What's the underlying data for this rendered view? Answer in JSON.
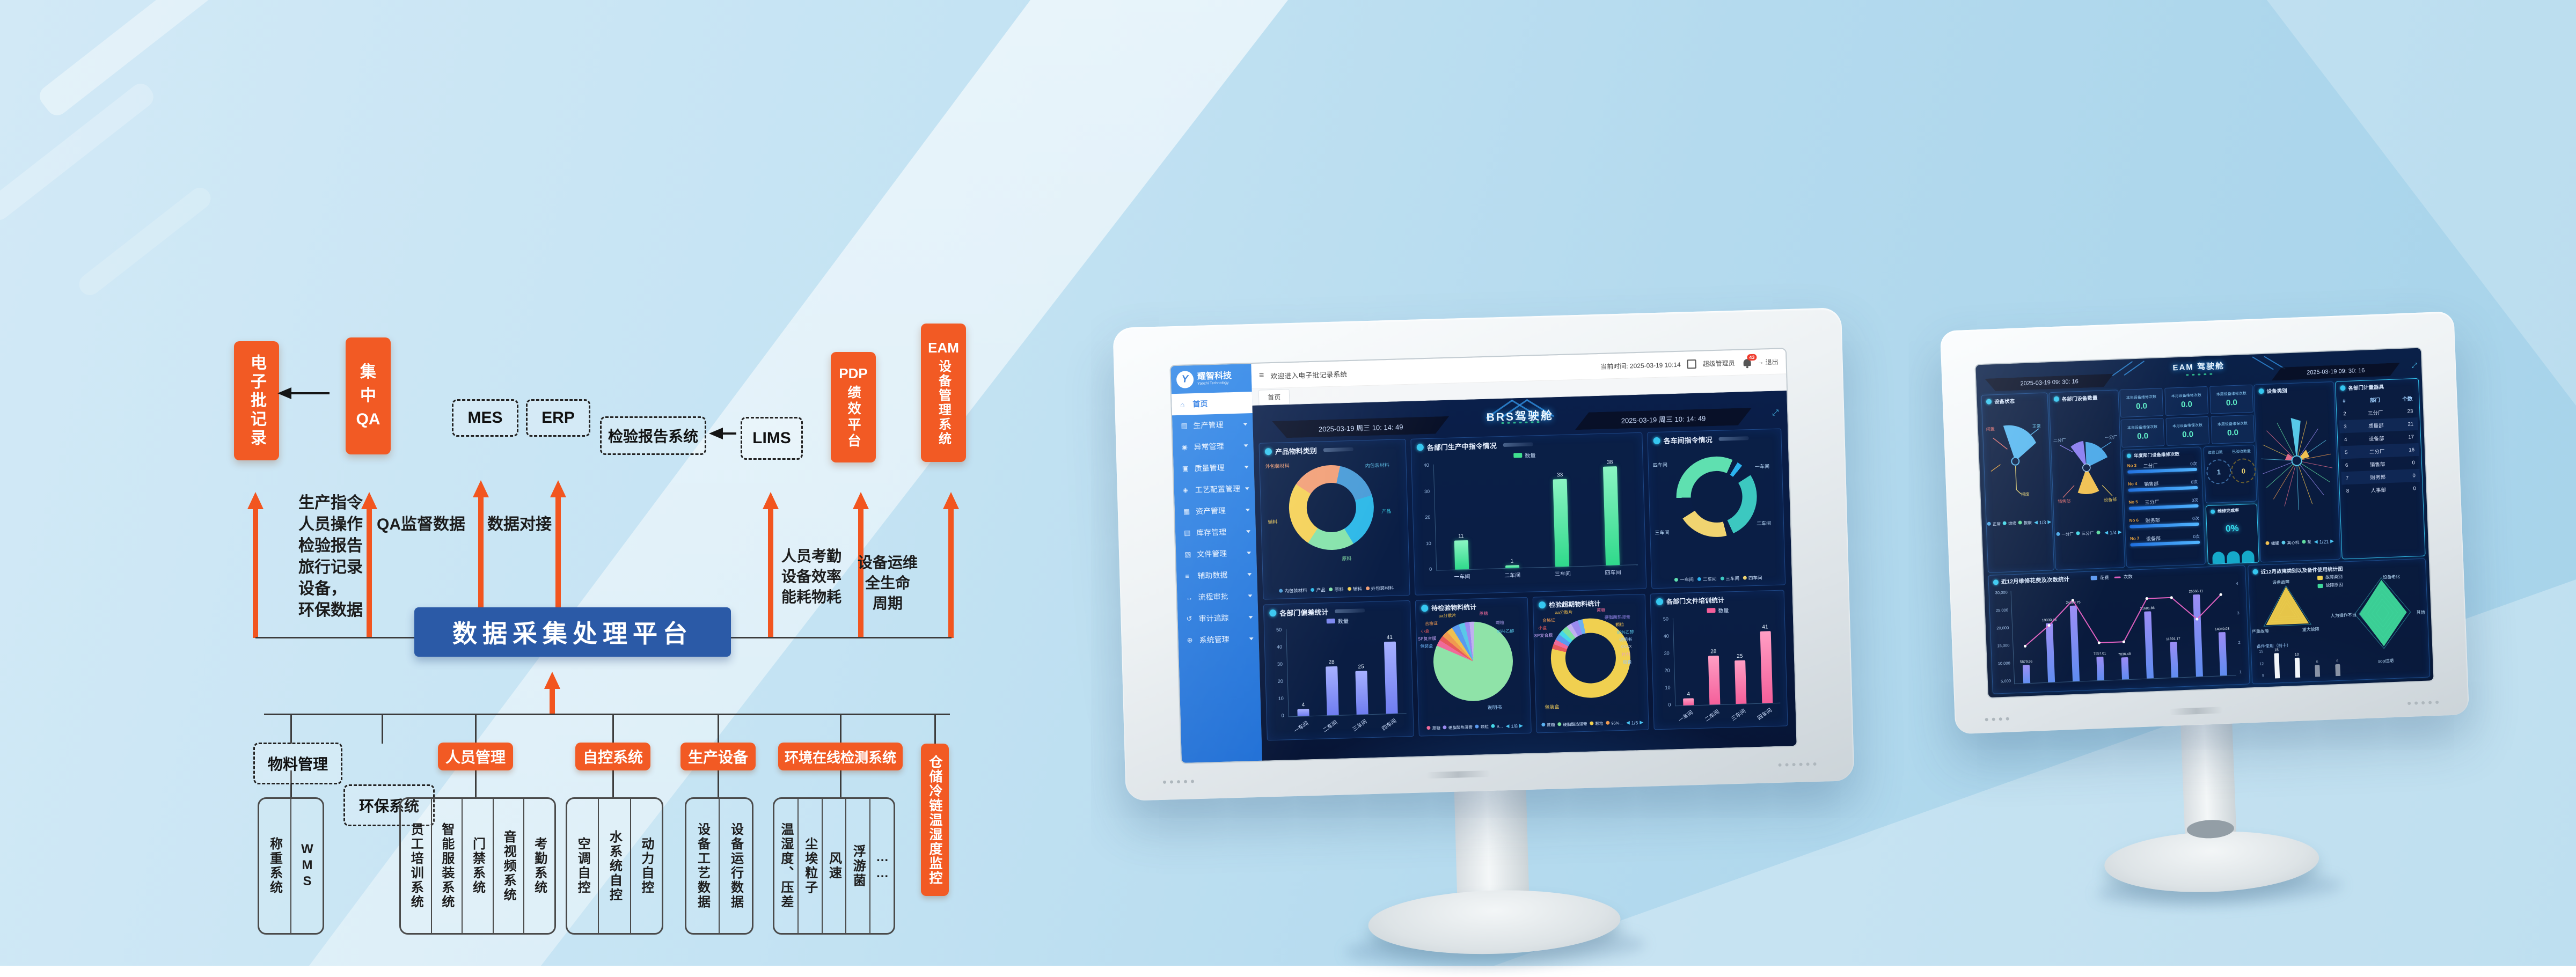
{
  "diagram": {
    "ebr": "电子批记录",
    "qa_line1": "集",
    "qa_line2": "中",
    "qa_line3": "QA",
    "mes": "MES",
    "erp": "ERP",
    "inspection": "检验报告系统",
    "lims": "LIMS",
    "pdp_title": "PDP",
    "pdp_sub": "绩效平台",
    "eam_title": "EAM",
    "eam_sub": "设备管理系统",
    "left_lines": [
      "生产指令",
      "人员操作",
      "检验报告",
      "旅行记录",
      "设备，",
      "环保数据"
    ],
    "qa_label": "QA监督数据",
    "link_label": "数据对接",
    "hr_lines": [
      "人员考勤",
      "设备效率",
      "能耗物耗"
    ],
    "ops_lines": [
      "设备运维",
      "全生命",
      "周期"
    ],
    "platform": "数据采集处理平台",
    "groups": [
      {
        "label": "物料管理",
        "children": [
          "称重系统",
          "WMS"
        ]
      },
      {
        "label": "环保系统",
        "children": []
      },
      {
        "label": "人员管理",
        "children": [
          "员工培训系统",
          "智能服装系统",
          "门禁系统",
          "音视频系统",
          "考勤系统"
        ]
      },
      {
        "label": "自控系统",
        "children": [
          "空调自控",
          "水系统自控",
          "动力自控"
        ]
      },
      {
        "label": "生产设备",
        "children": [
          "设备工艺数据",
          "设备运行数据"
        ]
      },
      {
        "label": "环境在线检测系统",
        "children": [
          "温湿度、压差",
          "尘埃粒子",
          "风速",
          "浮游菌",
          "……"
        ]
      },
      {
        "label": "仓储冷链温湿度监控",
        "children": []
      }
    ]
  },
  "m1": {
    "logo": "耀智科技",
    "logo_sub": "Yaozhi Technology",
    "welcome": "欢迎进入电子批记录系统",
    "time": "当前时间: 2025-03-19 10:14",
    "admin": "超级管理员",
    "badge": "43",
    "logout": "退出",
    "tab": "首页",
    "sidebar": [
      "首页",
      "生产管理",
      "异常管理",
      "质量管理",
      "工艺配置管理",
      "资产管理",
      "库存管理",
      "文件管理",
      "辅助数据",
      "流程审批",
      "审计追踪",
      "系统管理"
    ],
    "icons": [
      "⌂",
      "▤",
      "◉",
      "▣",
      "◈",
      "▦",
      "▥",
      "▧",
      "≡",
      "↔",
      "↺",
      "⊕"
    ],
    "title": "BRS驾驶舱",
    "datetime": "2025-03-19 周三 10: 14: 49",
    "cats": [
      "一车间",
      "二车间",
      "三车间",
      "四车间"
    ],
    "p_material": {
      "title": "产品物料类别",
      "labels": [
        "外包装材料",
        "内包装材料",
        "产品",
        "原料",
        "辅料"
      ],
      "legend": [
        "内包装材料",
        "产品",
        "原料",
        "辅料",
        "外包装材料"
      ],
      "colors": {
        "内包装材料": "#4a9cd8",
        "产品": "#2db8e8",
        "原料": "#86e3ab",
        "辅料": "#f5d259",
        "外包装材料": "#f2a078"
      }
    },
    "p_cmd": {
      "title": "各部门生产中指令情况",
      "legend": "数量",
      "values": [
        11,
        1,
        33,
        38
      ],
      "yticks": [
        "40",
        "30",
        "20",
        "10",
        "0"
      ]
    },
    "p_ws": {
      "title": "各车间指令情况",
      "labels": [
        "一车间",
        "二车间",
        "三车间",
        "四车间"
      ],
      "legend": [
        "一车间",
        "二车间",
        "三车间",
        "四车间"
      ],
      "colors": {
        "一车间": "#5fe0b0",
        "二车间": "#2bb3f0",
        "三车间": "#3cc8c0",
        "四车间": "#f0d470"
      }
    },
    "p_bias": {
      "title": "各部门偏差统计",
      "legend": "数量",
      "values": [
        4,
        28,
        25,
        41
      ],
      "yticks": [
        "50",
        "40",
        "30",
        "20",
        "10",
        "0"
      ]
    },
    "p_pending": {
      "title": "待检验物料统计",
      "big_label": "说明书",
      "labels": [
        "aa分散片",
        "蔗糖",
        "合格证",
        "小盒",
        "SP复合膜",
        "包装盒",
        "颗粒",
        "95%乙醇"
      ],
      "legend": [
        "蔗糖",
        "硬脂酸热浸膏",
        "颗粒",
        "9…"
      ],
      "pager": "1/8"
    },
    "p_overdue": {
      "title": "检验超期物料统计",
      "big_label": "包装盒",
      "labels": [
        "aa分散片",
        "合格证",
        "小盒",
        "SP复合膜",
        "蔗糖",
        "硬脂酸热浸膏",
        "颗粒",
        "95%乙醇",
        "说明书",
        "XXXX",
        "片剂",
        "胶囊"
      ],
      "legend": [
        "蔗糖",
        "硬脂酸热浸膏",
        "颗粒",
        "95%…"
      ],
      "pager": "1/5"
    },
    "p_training": {
      "title": "各部门文件培训统计",
      "legend": "数量",
      "values": [
        4,
        28,
        25,
        41
      ],
      "yticks": [
        "50",
        "40",
        "30",
        "20",
        "10",
        "0"
      ]
    }
  },
  "m2": {
    "title": "EAM 驾驶舱",
    "datetime": "2025-03-19 09: 30: 16",
    "p_status": {
      "title": "设备状态",
      "labels": [
        "闲置",
        "正常",
        "报废"
      ],
      "legend": [
        "正常",
        "维修",
        "报废"
      ],
      "pager": "1/3"
    },
    "p_dept": {
      "title": "各部门设备数量",
      "labels": [
        "二分厂",
        "一分厂",
        "销售部",
        "设备部"
      ],
      "legend": [
        "一分厂",
        "三分厂"
      ],
      "pager": "1/4"
    },
    "kpis": [
      {
        "t": "本年设备维修次数",
        "v": "0.0"
      },
      {
        "t": "本月设备维修次数",
        "v": "0.0"
      },
      {
        "t": "本周设备维修次数",
        "v": "0.0"
      },
      {
        "t": "本年设备维保次数",
        "v": "0.0"
      },
      {
        "t": "本月设备维保次数",
        "v": "0.0"
      },
      {
        "t": "本周设备维保次数",
        "v": "0.0"
      }
    ],
    "p_repair": {
      "title": "年度部门设备维修次数",
      "rows": [
        {
          "no": "No 3",
          "name": "二分厂",
          "v": "0次"
        },
        {
          "no": "No 4",
          "name": "销售部",
          "v": "0次"
        },
        {
          "no": "No 5",
          "name": "三分厂",
          "v": "0次"
        },
        {
          "no": "No 6",
          "name": "财务部",
          "v": "0次"
        },
        {
          "no": "No 7",
          "name": "设备部",
          "v": "0次"
        }
      ]
    },
    "c1_title": "维修日数",
    "c1_val": "1",
    "c2_title": "已验收数量",
    "c2_val": "0",
    "rate_title": "维修完成率",
    "rate_val": "0%",
    "p_class": {
      "title": "设备类别",
      "legend": [
        "储罐",
        "离心机",
        "泵"
      ],
      "pager": "1/21"
    },
    "p_meter": {
      "title": "各部门计量器具",
      "headers": [
        "#",
        "部门",
        "个数"
      ],
      "rows": [
        [
          "2",
          "三分厂",
          "23"
        ],
        [
          "3",
          "质量部",
          "21"
        ],
        [
          "4",
          "设备部",
          "17"
        ],
        [
          "5",
          "二分厂",
          "16"
        ],
        [
          "6",
          "销售部",
          "0"
        ],
        [
          "7",
          "财务部",
          "0"
        ],
        [
          "8",
          "人事部",
          "0"
        ]
      ]
    },
    "p_cost": {
      "title": "近12月维修花费及次数统计",
      "legend": [
        "花费",
        "次数"
      ],
      "values": [
        "5879.95",
        "19030.48",
        "24369.75",
        "7557.01",
        "7036.48",
        "21681.86",
        "11391.17",
        "26566.11",
        "14049.03"
      ],
      "line": [
        2,
        3,
        4,
        2,
        2,
        4,
        4,
        3,
        4
      ],
      "yticks": [
        "30,000",
        "25,000",
        "20,000",
        "15,000",
        "10,000",
        "5,000"
      ],
      "y2ticks": [
        "4",
        "3",
        "2",
        "1"
      ]
    },
    "p_fault": {
      "title": "近12月故障类别以及备件使用统计图",
      "legend": [
        "故障类别",
        "故障原因"
      ],
      "radar1": [
        "设备故障",
        "严重故障",
        "重大故障"
      ],
      "radar2": [
        "设备老化",
        "人为操作不当",
        "其他",
        "sop过期"
      ],
      "spare_title": "备件使用（前十）",
      "spare_values": [
        15,
        10,
        6,
        6
      ],
      "spare_yticks": [
        "15",
        "12",
        "9"
      ]
    }
  }
}
